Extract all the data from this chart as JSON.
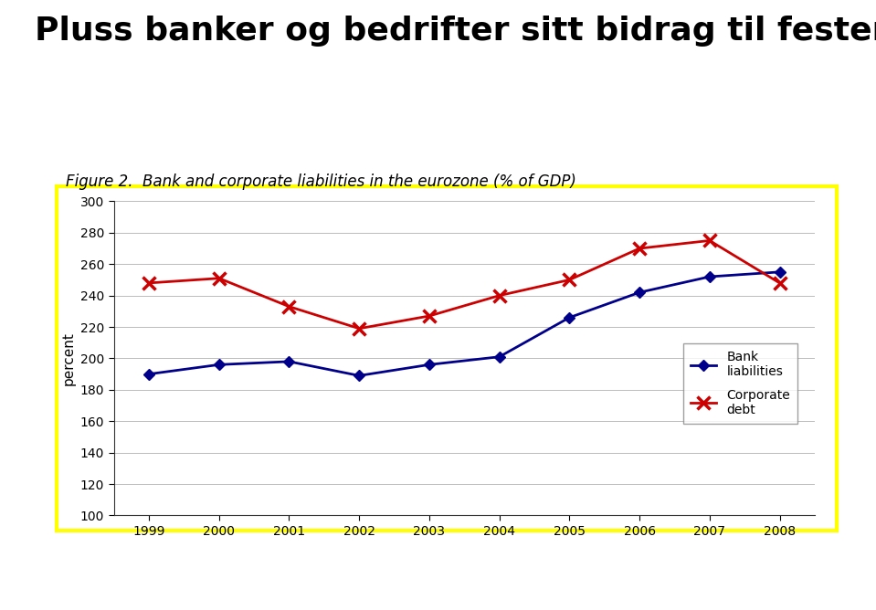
{
  "title": "Pluss banker og bedrifter sitt bidrag til festen",
  "figure_caption": "Figure 2.  Bank and corporate liabilities in the eurozone (% of GDP)",
  "years": [
    1999,
    2000,
    2001,
    2002,
    2003,
    2004,
    2005,
    2006,
    2007,
    2008
  ],
  "bank_liabilities": [
    190,
    196,
    198,
    189,
    196,
    201,
    226,
    242,
    252,
    255
  ],
  "corporate_debt": [
    248,
    251,
    233,
    219,
    227,
    240,
    250,
    270,
    275,
    248
  ],
  "bank_color": "#00008B",
  "corporate_color": "#CC0000",
  "ylabel": "percent",
  "ylim": [
    100,
    300
  ],
  "yticks": [
    100,
    120,
    140,
    160,
    180,
    200,
    220,
    240,
    260,
    280,
    300
  ],
  "background_color": "#ffffff",
  "chart_bg": "#ffffff",
  "border_color": "#FFFF00",
  "title_fontsize": 26,
  "caption_fontsize": 12,
  "bottom_bar_color": "#5BC8DC",
  "legend_bank": "Bank\nliabilities",
  "legend_corp": "Corporate\ndebt",
  "fig_width": 9.59,
  "fig_height": 6.68,
  "dpi": 100
}
